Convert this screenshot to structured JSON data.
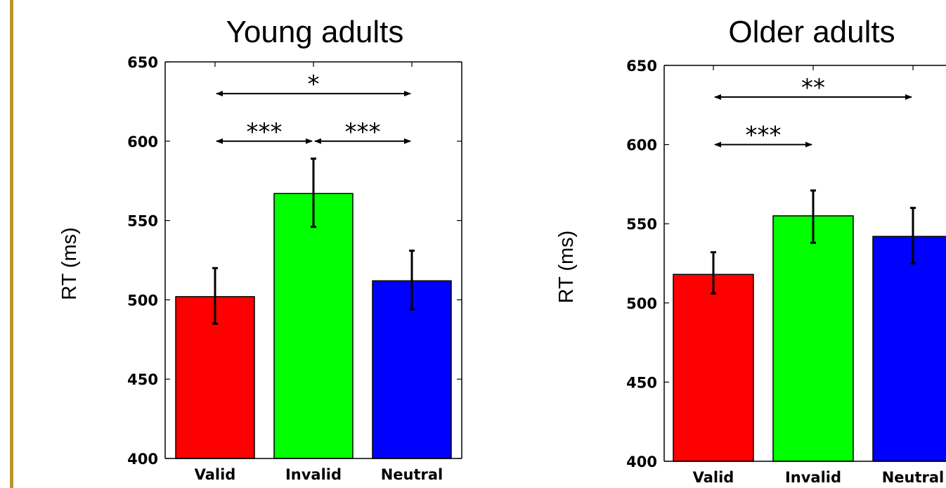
{
  "chart_data": [
    {
      "type": "bar",
      "title": "Young adults",
      "ylabel": "RT (ms)",
      "xlabel": "",
      "ylim": [
        400,
        650
      ],
      "yticks": [
        400,
        450,
        500,
        550,
        600,
        650
      ],
      "categories": [
        "Valid",
        "Invalid",
        "Neutral"
      ],
      "values": [
        502,
        567,
        512
      ],
      "errors": [
        [
          485,
          520
        ],
        [
          546,
          589
        ],
        [
          494,
          531
        ]
      ],
      "colors": [
        "#ff0000",
        "#00ff00",
        "#0000ff"
      ],
      "grid": false,
      "significance": [
        {
          "from": "Valid",
          "to": "Neutral",
          "level": 630,
          "label": "*"
        },
        {
          "from": "Valid",
          "to": "Invalid",
          "level": 600,
          "label": "***"
        },
        {
          "from": "Invalid",
          "to": "Neutral",
          "level": 600,
          "label": "***"
        }
      ]
    },
    {
      "type": "bar",
      "title": "Older adults",
      "ylabel": "RT (ms)",
      "xlabel": "",
      "ylim": [
        400,
        650
      ],
      "yticks": [
        400,
        450,
        500,
        550,
        600,
        650
      ],
      "categories": [
        "Valid",
        "Invalid",
        "Neutral"
      ],
      "values": [
        518,
        555,
        542
      ],
      "errors": [
        [
          506,
          532
        ],
        [
          538,
          571
        ],
        [
          525,
          560
        ]
      ],
      "colors": [
        "#ff0000",
        "#00ff00",
        "#0000ff"
      ],
      "grid": false,
      "significance": [
        {
          "from": "Valid",
          "to": "Neutral",
          "level": 630,
          "label": "**"
        },
        {
          "from": "Valid",
          "to": "Invalid",
          "level": 600,
          "label": "***"
        }
      ]
    }
  ]
}
